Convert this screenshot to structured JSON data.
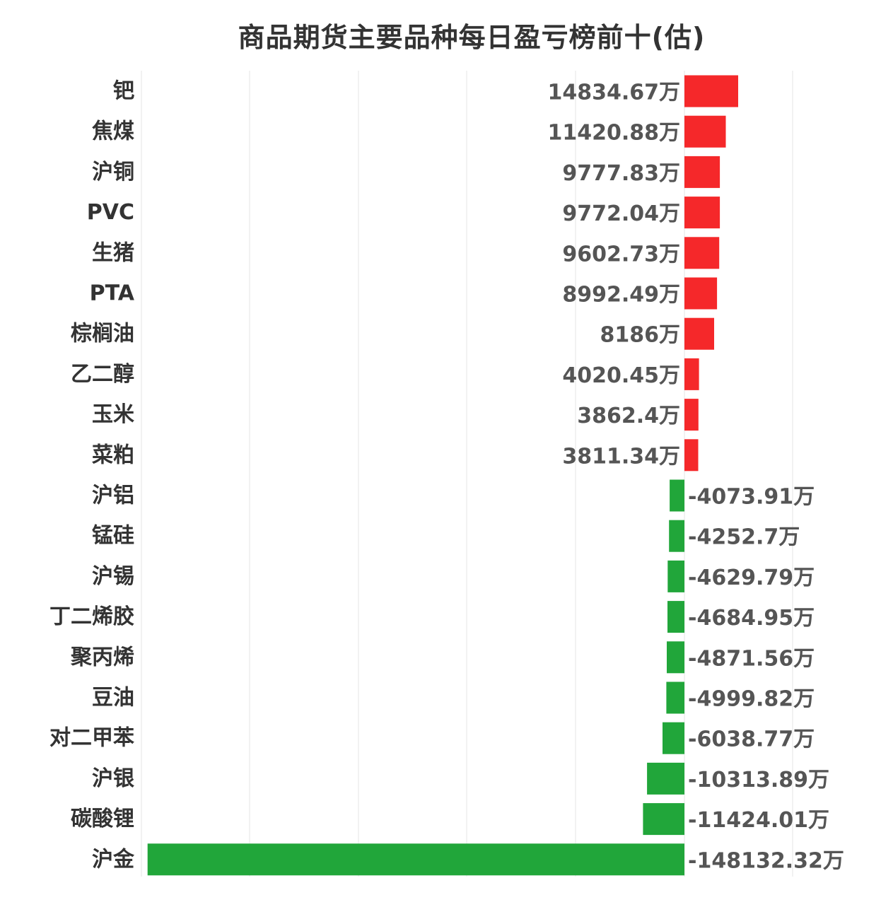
{
  "chart_data": {
    "type": "bar",
    "orientation": "horizontal",
    "title": "商品期货主要品种每日盈亏榜前十(估)",
    "unit": "万",
    "grid": true,
    "colors": {
      "positive": "#f5282a",
      "negative": "#21a63a",
      "text": "#333333",
      "value_text": "#555555"
    },
    "categories": [
      "钯",
      "焦煤",
      "沪铜",
      "PVC",
      "生猪",
      "PTA",
      "棕榈油",
      "乙二醇",
      "玉米",
      "菜粕",
      "沪铝",
      "锰硅",
      "沪锡",
      "丁二烯胶",
      "聚丙烯",
      "豆油",
      "对二甲苯",
      "沪银",
      "碳酸锂",
      "沪金"
    ],
    "values": [
      14834.67,
      11420.88,
      9777.83,
      9772.04,
      9602.73,
      8992.49,
      8186,
      4020.45,
      3862.4,
      3811.34,
      -4073.91,
      -4252.7,
      -4629.79,
      -4684.95,
      -4871.56,
      -4999.82,
      -6038.77,
      -10313.89,
      -11424.01,
      -148132.32
    ],
    "value_labels": [
      "14834.67万",
      "11420.88万",
      "9777.83万",
      "9772.04万",
      "9602.73万",
      "8992.49万",
      "8186万",
      "4020.45万",
      "3862.4万",
      "3811.34万",
      "-4073.91万",
      "-4252.7万",
      "-4629.79万",
      "-4684.95万",
      "-4871.56万",
      "-4999.82万",
      "-6038.77万",
      "-10313.89万",
      "-11424.01万",
      "-148132.32万"
    ],
    "xlim": [
      -150000,
      30000
    ]
  }
}
